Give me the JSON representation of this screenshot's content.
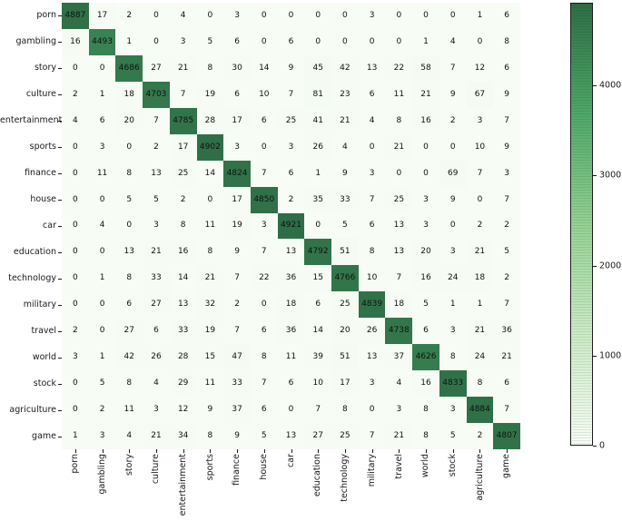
{
  "chart_data": {
    "type": "heatmap",
    "title": "",
    "xlabel": "",
    "ylabel": "",
    "legend_position": "right-colorbar",
    "grid": false,
    "categories": [
      "porn",
      "gambling",
      "story",
      "culture",
      "entertainment",
      "sports",
      "finance",
      "house",
      "car",
      "education",
      "technology",
      "military",
      "travel",
      "world",
      "stock",
      "agriculture",
      "game"
    ],
    "matrix": [
      [
        4887,
        17,
        2,
        0,
        4,
        0,
        3,
        0,
        0,
        0,
        0,
        3,
        0,
        0,
        0,
        1,
        6
      ],
      [
        16,
        4493,
        1,
        0,
        3,
        5,
        6,
        0,
        6,
        0,
        0,
        0,
        0,
        1,
        4,
        0,
        8
      ],
      [
        0,
        0,
        4686,
        27,
        21,
        8,
        30,
        14,
        9,
        45,
        42,
        13,
        22,
        58,
        7,
        12,
        6
      ],
      [
        2,
        1,
        18,
        4703,
        7,
        19,
        6,
        10,
        7,
        81,
        23,
        6,
        11,
        21,
        9,
        67,
        9
      ],
      [
        4,
        6,
        20,
        7,
        4785,
        28,
        17,
        6,
        25,
        41,
        21,
        4,
        8,
        16,
        2,
        3,
        7
      ],
      [
        0,
        3,
        0,
        2,
        17,
        4902,
        3,
        0,
        3,
        26,
        4,
        0,
        21,
        0,
        0,
        10,
        9
      ],
      [
        0,
        11,
        8,
        13,
        25,
        14,
        4824,
        7,
        6,
        1,
        9,
        3,
        0,
        0,
        69,
        7,
        3
      ],
      [
        0,
        0,
        5,
        5,
        2,
        0,
        17,
        4850,
        2,
        35,
        33,
        7,
        25,
        3,
        9,
        0,
        7
      ],
      [
        0,
        4,
        0,
        3,
        8,
        11,
        19,
        3,
        4921,
        0,
        5,
        6,
        13,
        3,
        0,
        2,
        2
      ],
      [
        0,
        0,
        13,
        21,
        16,
        8,
        9,
        7,
        13,
        4792,
        51,
        8,
        13,
        20,
        3,
        21,
        5
      ],
      [
        0,
        1,
        8,
        33,
        14,
        21,
        7,
        22,
        36,
        15,
        4766,
        10,
        7,
        16,
        24,
        18,
        2
      ],
      [
        0,
        0,
        6,
        27,
        13,
        32,
        2,
        0,
        18,
        6,
        25,
        4839,
        18,
        5,
        1,
        1,
        7
      ],
      [
        2,
        0,
        27,
        6,
        33,
        19,
        7,
        6,
        36,
        14,
        20,
        26,
        4738,
        6,
        3,
        21,
        36
      ],
      [
        3,
        1,
        42,
        26,
        28,
        15,
        47,
        8,
        11,
        39,
        51,
        13,
        37,
        4626,
        8,
        24,
        21
      ],
      [
        0,
        5,
        8,
        4,
        29,
        11,
        33,
        7,
        6,
        10,
        17,
        3,
        4,
        16,
        4833,
        8,
        6
      ],
      [
        0,
        2,
        11,
        3,
        12,
        9,
        37,
        6,
        0,
        7,
        8,
        0,
        3,
        8,
        3,
        4884,
        7
      ],
      [
        1,
        3,
        4,
        21,
        34,
        8,
        9,
        5,
        13,
        27,
        25,
        7,
        21,
        8,
        5,
        2,
        4807
      ]
    ],
    "vmin": 0,
    "vmax": 4921,
    "colorbar_ticks": [
      0,
      1000,
      2000,
      3000,
      4000
    ],
    "colormap_name": "greens",
    "colormap_stops": [
      [
        0.0,
        "#f7fcf5"
      ],
      [
        0.25,
        "#cdeac6"
      ],
      [
        0.5,
        "#94d193"
      ],
      [
        0.75,
        "#4fa768"
      ],
      [
        1.0,
        "#2e6e46"
      ]
    ],
    "cell_text_color": "#111111",
    "axis_color": "#1a1a1a"
  }
}
